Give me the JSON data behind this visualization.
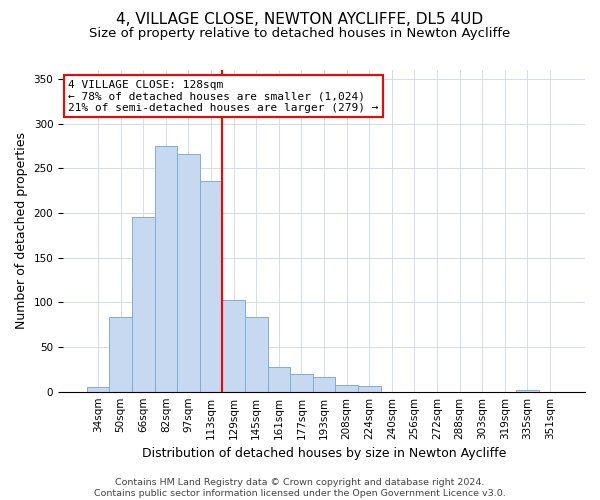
{
  "title": "4, VILLAGE CLOSE, NEWTON AYCLIFFE, DL5 4UD",
  "subtitle": "Size of property relative to detached houses in Newton Aycliffe",
  "xlabel": "Distribution of detached houses by size in Newton Aycliffe",
  "ylabel": "Number of detached properties",
  "bar_labels": [
    "34sqm",
    "50sqm",
    "66sqm",
    "82sqm",
    "97sqm",
    "113sqm",
    "129sqm",
    "145sqm",
    "161sqm",
    "177sqm",
    "193sqm",
    "208sqm",
    "224sqm",
    "240sqm",
    "256sqm",
    "272sqm",
    "288sqm",
    "303sqm",
    "319sqm",
    "335sqm",
    "351sqm"
  ],
  "bar_values": [
    5,
    84,
    196,
    275,
    266,
    236,
    103,
    84,
    28,
    20,
    16,
    7,
    6,
    0,
    0,
    0,
    0,
    0,
    0,
    2,
    0
  ],
  "bar_color": "#c6d9f0",
  "bar_edge_color": "#7bafd4",
  "vline_color": "red",
  "vline_x_index": 6,
  "annotation_title": "4 VILLAGE CLOSE: 128sqm",
  "annotation_line1": "← 78% of detached houses are smaller (1,024)",
  "annotation_line2": "21% of semi-detached houses are larger (279) →",
  "annotation_box_color": "white",
  "annotation_box_edge": "red",
  "ylim": [
    0,
    360
  ],
  "yticks": [
    0,
    50,
    100,
    150,
    200,
    250,
    300,
    350
  ],
  "footer1": "Contains HM Land Registry data © Crown copyright and database right 2024.",
  "footer2": "Contains public sector information licensed under the Open Government Licence v3.0.",
  "title_fontsize": 11,
  "subtitle_fontsize": 9.5,
  "axis_label_fontsize": 9,
  "tick_fontsize": 7.5,
  "footer_fontsize": 6.8,
  "annotation_fontsize": 8
}
